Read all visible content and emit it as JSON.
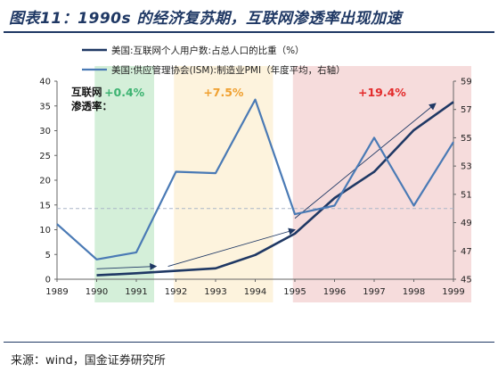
{
  "title": "图表11：1990s 的经济复苏期，互联网渗透率出现加速",
  "source": "来源：wind，国金证券研究所",
  "chart_data": {
    "type": "line",
    "x": [
      "1989",
      "1990",
      "1991",
      "1992",
      "1993",
      "1994",
      "1995",
      "1996",
      "1997",
      "1998",
      "1999"
    ],
    "series": [
      {
        "name": "美国:互联网个人用户数:占总人口的比重（%）",
        "axis": "left",
        "color": "#1f3864",
        "x": [
          "1990",
          "1991",
          "1992",
          "1993",
          "1994",
          "1995",
          "1996",
          "1997",
          "1998",
          "1999"
        ],
        "values": [
          0.8,
          1.2,
          1.7,
          2.2,
          4.9,
          9.2,
          16.4,
          21.7,
          30.1,
          35.8
        ]
      },
      {
        "name": "美国:供应管理协会(ISM):制造业PMI（年度平均，右轴）",
        "axis": "right",
        "color": "#4a7ab5",
        "x": [
          "1989",
          "1990",
          "1991",
          "1992",
          "1993",
          "1994",
          "1995",
          "1996",
          "1997",
          "1998",
          "1999"
        ],
        "values": [
          48.9,
          46.4,
          46.9,
          52.6,
          52.5,
          57.7,
          49.6,
          50.2,
          55.0,
          50.2,
          54.7
        ]
      }
    ],
    "y_left": {
      "min": 0,
      "max": 40,
      "ticks": [
        0,
        5,
        10,
        15,
        20,
        25,
        30,
        35,
        40
      ]
    },
    "y_right": {
      "min": 45,
      "max": 59,
      "ticks": [
        45,
        47,
        49,
        51,
        53,
        55,
        57,
        59
      ]
    },
    "reference_line": {
      "axis": "right",
      "value": 50
    },
    "periods": [
      {
        "from": "1990",
        "to": "1991",
        "color": "#d4efd9",
        "label": "+0.4%",
        "label_color": "#3cb371"
      },
      {
        "from": "1992",
        "to": "1994",
        "color": "#fdf3dd",
        "label": "+7.5%",
        "label_color": "#f0a030"
      },
      {
        "from": "1995",
        "to": "1999",
        "color": "#f6dcdc",
        "label": "+19.4%",
        "label_color": "#e32b2b"
      }
    ],
    "annotation": "互联网\n渗透率：",
    "legend_position": "top",
    "grid": false
  }
}
